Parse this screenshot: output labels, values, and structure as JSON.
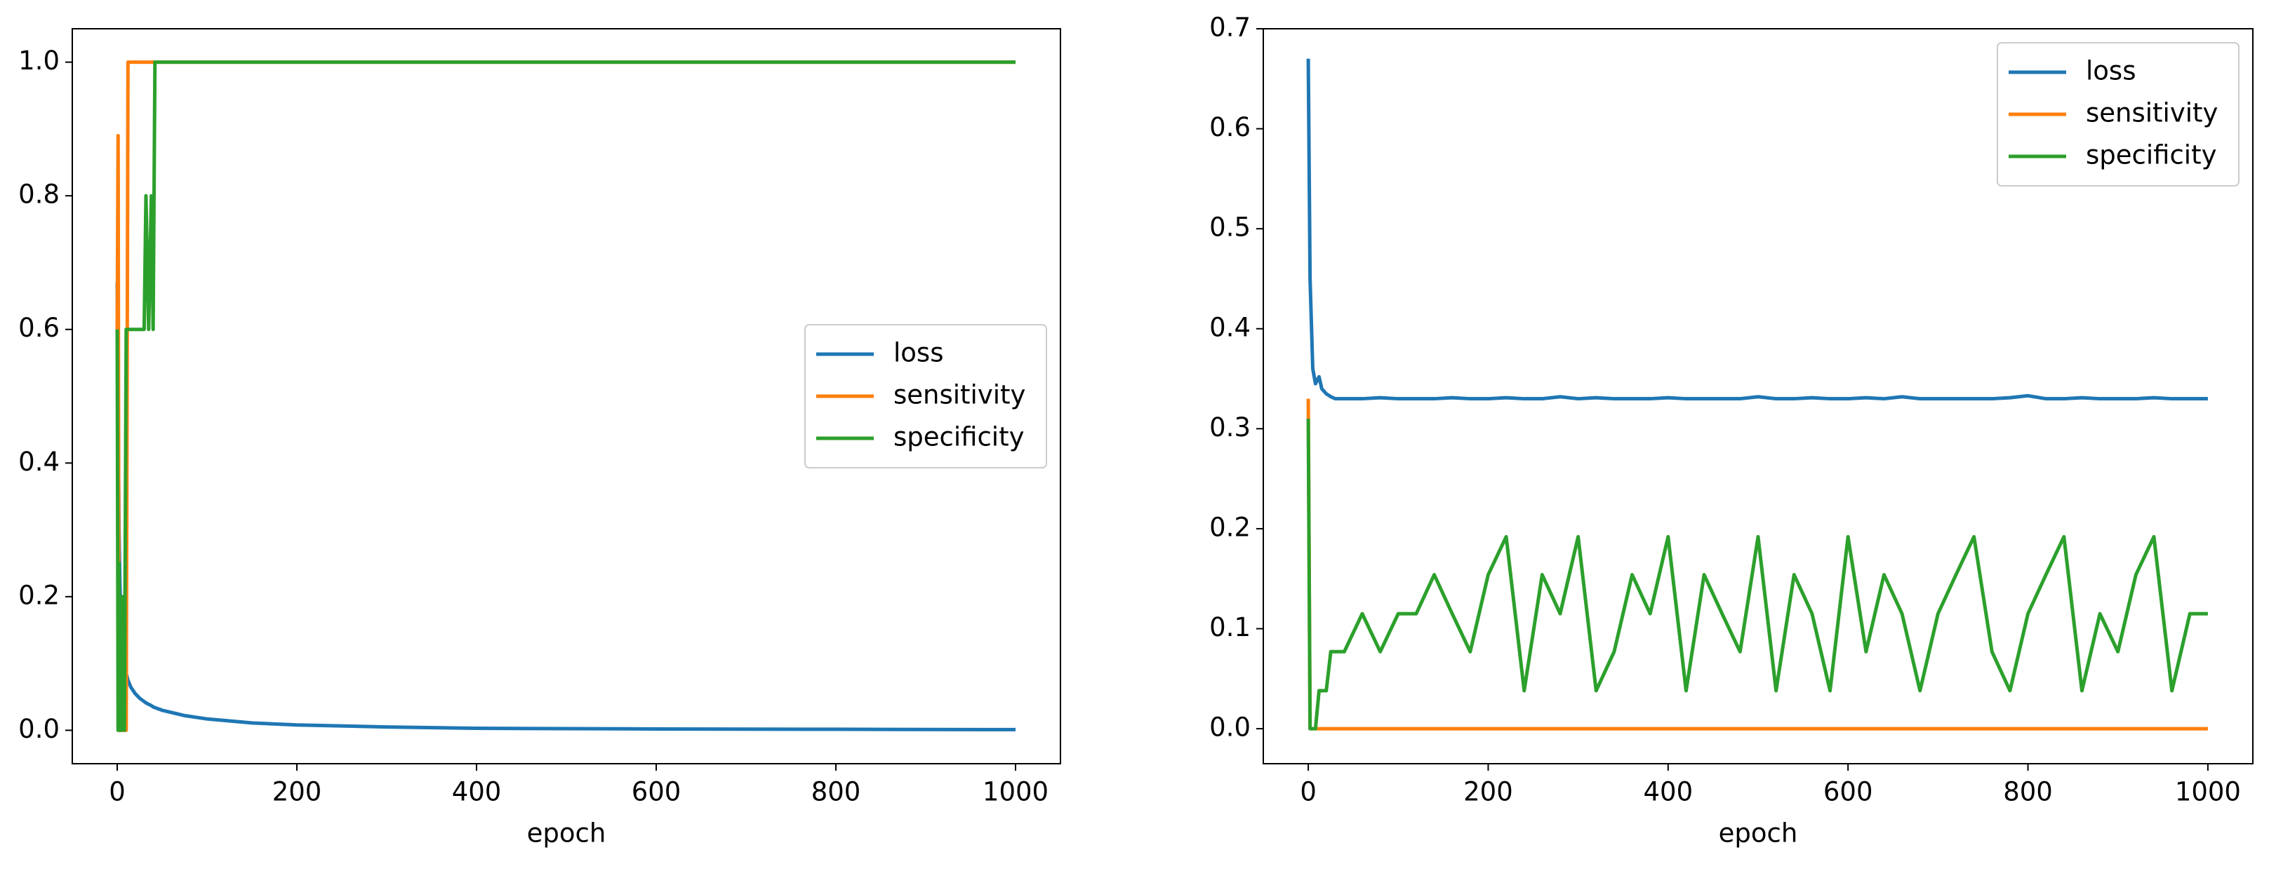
{
  "chart_data": [
    {
      "type": "line",
      "x": [
        0,
        1,
        2,
        3,
        4,
        5,
        6,
        8,
        10,
        12,
        15,
        20,
        25,
        30,
        32,
        35,
        38,
        40,
        42,
        50,
        75,
        100,
        150,
        200,
        300,
        400,
        600,
        800,
        1000
      ],
      "series": [
        {
          "name": "loss",
          "color": "#1f77b4",
          "values": [
            0.67,
            0.5,
            0.3,
            0.22,
            0.17,
            0.14,
            0.12,
            0.1,
            0.085,
            0.075,
            0.065,
            0.055,
            0.048,
            0.043,
            0.041,
            0.039,
            0.037,
            0.035,
            0.034,
            0.03,
            0.022,
            0.017,
            0.011,
            0.008,
            0.005,
            0.003,
            0.002,
            0.0015,
            0.001
          ]
        },
        {
          "name": "sensitivity",
          "color": "#ff7f0e",
          "values": [
            0.6,
            0.89,
            0,
            0,
            0,
            0,
            0,
            0,
            0,
            1,
            1,
            1,
            1,
            1,
            1,
            1,
            1,
            1,
            1,
            1,
            1,
            1,
            1,
            1,
            1,
            1,
            1,
            1,
            1
          ]
        },
        {
          "name": "specificity",
          "color": "#2ca02c",
          "values": [
            0.6,
            0,
            0.25,
            0,
            0.2,
            0,
            0.2,
            0,
            0.6,
            0.6,
            0.6,
            0.6,
            0.6,
            0.6,
            0.8,
            0.6,
            0.8,
            0.6,
            1,
            1,
            1,
            1,
            1,
            1,
            1,
            1,
            1,
            1,
            1
          ]
        }
      ],
      "xlabel": "epoch",
      "xlim": [
        -50,
        1050
      ],
      "ylim": [
        -0.05,
        1.05
      ],
      "xticks": [
        0,
        200,
        400,
        600,
        800,
        1000
      ],
      "yticks": [
        {
          "value": 0,
          "label": "0.0"
        },
        0.2,
        0.4,
        0.6,
        0.8,
        {
          "value": 1,
          "label": "1.0"
        }
      ],
      "legend": "center right"
    },
    {
      "type": "line",
      "x": [
        0,
        2,
        5,
        8,
        12,
        15,
        20,
        25,
        30,
        40,
        60,
        80,
        100,
        120,
        140,
        160,
        180,
        200,
        220,
        240,
        260,
        280,
        300,
        320,
        340,
        360,
        380,
        400,
        420,
        440,
        460,
        480,
        500,
        520,
        540,
        560,
        580,
        600,
        620,
        640,
        660,
        680,
        700,
        720,
        740,
        760,
        780,
        800,
        820,
        840,
        860,
        880,
        900,
        920,
        940,
        960,
        980,
        1000
      ],
      "series": [
        {
          "name": "loss",
          "color": "#1f77b4",
          "values": [
            0.67,
            0.45,
            0.36,
            0.345,
            0.352,
            0.34,
            0.335,
            0.332,
            0.33,
            0.33,
            0.33,
            0.331,
            0.33,
            0.33,
            0.33,
            0.331,
            0.33,
            0.33,
            0.331,
            0.33,
            0.33,
            0.332,
            0.33,
            0.331,
            0.33,
            0.33,
            0.33,
            0.331,
            0.33,
            0.33,
            0.33,
            0.33,
            0.332,
            0.33,
            0.33,
            0.331,
            0.33,
            0.33,
            0.331,
            0.33,
            0.332,
            0.33,
            0.33,
            0.33,
            0.33,
            0.33,
            0.331,
            0.333,
            0.33,
            0.33,
            0.331,
            0.33,
            0.33,
            0.33,
            0.331,
            0.33,
            0.33,
            0.33
          ]
        },
        {
          "name": "sensitivity",
          "color": "#ff7f0e",
          "values": [
            0.33,
            0,
            0,
            0,
            0,
            0,
            0,
            0,
            0,
            0,
            0,
            0,
            0,
            0,
            0,
            0,
            0,
            0,
            0,
            0,
            0,
            0,
            0,
            0,
            0,
            0,
            0,
            0,
            0,
            0,
            0,
            0,
            0,
            0,
            0,
            0,
            0,
            0,
            0,
            0,
            0,
            0,
            0,
            0,
            0,
            0,
            0,
            0,
            0,
            0,
            0,
            0,
            0,
            0,
            0,
            0,
            0,
            0
          ]
        },
        {
          "name": "specificity",
          "color": "#2ca02c",
          "values": [
            0.31,
            0,
            0,
            0,
            0.038,
            0.038,
            0.038,
            0.077,
            0.077,
            0.077,
            0.115,
            0.077,
            0.115,
            0.115,
            0.154,
            0.115,
            0.077,
            0.154,
            0.192,
            0.038,
            0.154,
            0.115,
            0.192,
            0.038,
            0.077,
            0.154,
            0.115,
            0.192,
            0.038,
            0.154,
            0.115,
            0.077,
            0.192,
            0.038,
            0.154,
            0.115,
            0.038,
            0.192,
            0.077,
            0.154,
            0.115,
            0.038,
            0.115,
            0.154,
            0.192,
            0.077,
            0.038,
            0.115,
            0.154,
            0.192,
            0.038,
            0.115,
            0.077,
            0.154,
            0.192,
            0.038,
            0.115,
            0.115
          ]
        }
      ],
      "xlabel": "epoch",
      "xlim": [
        -50,
        1050
      ],
      "ylim": [
        -0.035,
        0.7
      ],
      "xticks": [
        0,
        200,
        400,
        600,
        800,
        1000
      ],
      "yticks": [
        {
          "value": 0,
          "label": "0.0"
        },
        0.1,
        0.2,
        0.3,
        0.4,
        0.5,
        0.6,
        0.7
      ],
      "legend": "upper right"
    }
  ]
}
